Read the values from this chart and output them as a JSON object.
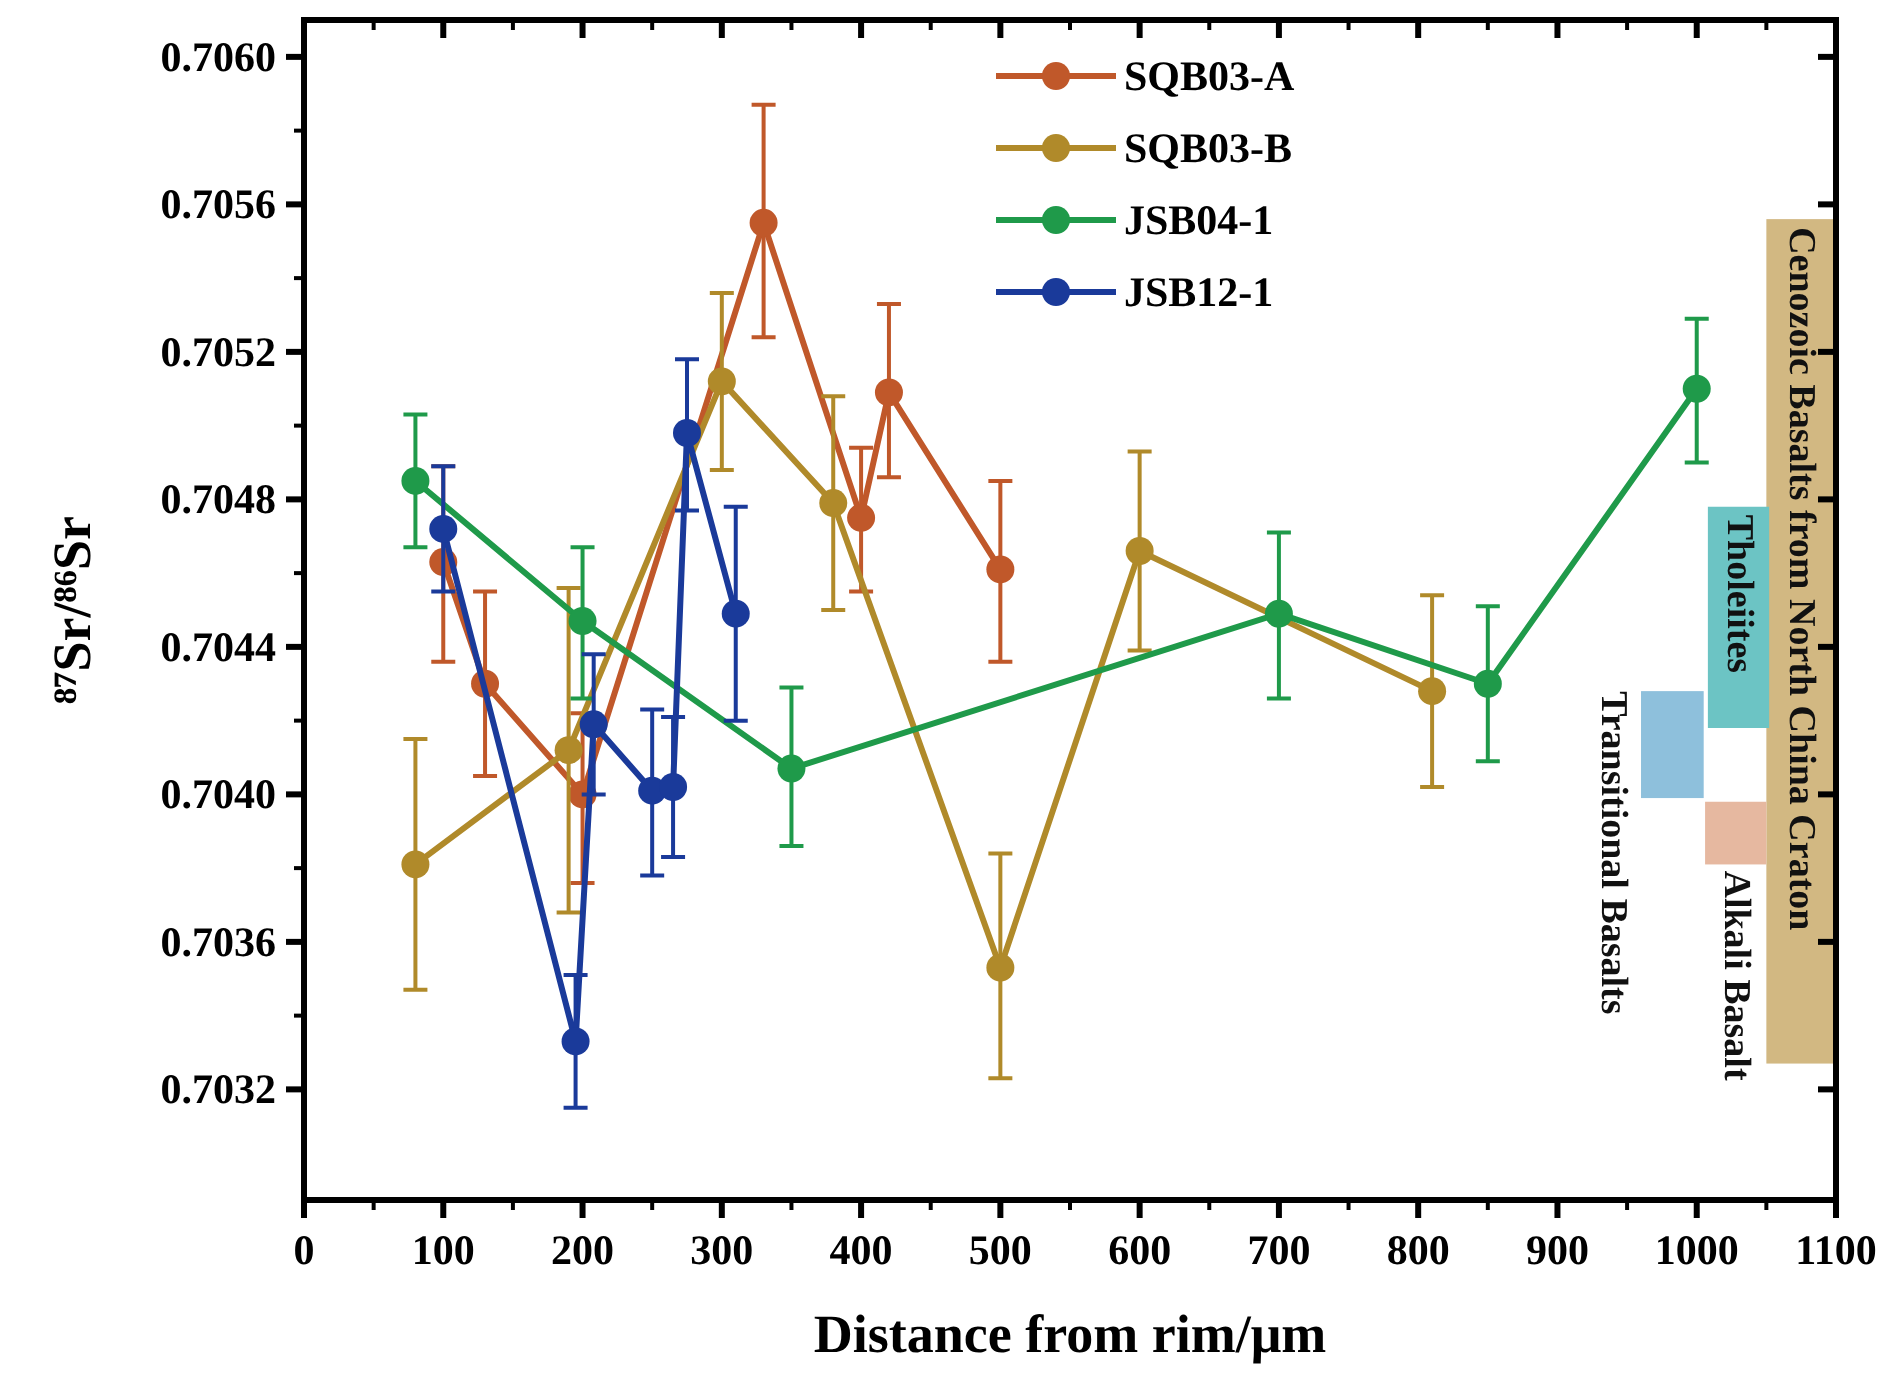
{
  "chart_data": {
    "type": "line",
    "xlabel": "Distance from rim/μm",
    "ylabel": "⁸⁷Sr/⁸⁶Sr",
    "xlim": [
      0,
      1100
    ],
    "xticks": [
      0,
      100,
      200,
      300,
      400,
      500,
      600,
      700,
      800,
      900,
      1000,
      1100
    ],
    "ylim": [
      0.7029,
      0.7061
    ],
    "yticks": [
      0.7032,
      0.7036,
      {
        "value": 0.704,
        "label": "0.7040"
      },
      0.7044,
      0.7048,
      0.7052,
      0.7056,
      {
        "value": 0.706,
        "label": "0.7060"
      }
    ],
    "grid": false,
    "legend": "top",
    "marker": "circle",
    "line_style": "solid",
    "series": [
      {
        "name": "SQB03-A",
        "color": "#c0582a",
        "x": [
          100,
          130,
          200,
          330,
          400,
          420,
          500
        ],
        "values": [
          0.70463,
          0.7043,
          0.704,
          0.70555,
          0.70475,
          0.70509,
          0.70461
        ],
        "errors": [
          [
            0.70436,
            0.70489
          ],
          [
            0.70405,
            0.70455
          ],
          [
            0.70376,
            0.70422
          ],
          [
            0.70524,
            0.70587
          ],
          [
            0.70455,
            0.70494
          ],
          [
            0.70486,
            0.70533
          ],
          [
            0.70436,
            0.70485
          ]
        ]
      },
      {
        "name": "SQB03-B",
        "color": "#b08a2a",
        "x": [
          80,
          190,
          300,
          380,
          500,
          600,
          810
        ],
        "values": [
          0.70381,
          0.70412,
          0.70512,
          0.70479,
          0.70353,
          0.70466,
          0.70428
        ],
        "errors": [
          [
            0.70347,
            0.70415
          ],
          [
            0.70368,
            0.70456
          ],
          [
            0.70488,
            0.70536
          ],
          [
            0.7045,
            0.70508
          ],
          [
            0.70323,
            0.70384
          ],
          [
            0.70439,
            0.70493
          ],
          [
            0.70402,
            0.70454
          ]
        ]
      },
      {
        "name": "JSB04-1",
        "color": "#1f9a4a",
        "x": [
          80,
          200,
          350,
          700,
          850,
          1000
        ],
        "values": [
          0.70485,
          0.70447,
          0.70407,
          0.70449,
          0.7043,
          0.7051
        ],
        "errors": [
          [
            0.70467,
            0.70503
          ],
          [
            0.70426,
            0.70467
          ],
          [
            0.70386,
            0.70429
          ],
          [
            0.70426,
            0.70471
          ],
          [
            0.70409,
            0.70451
          ],
          [
            0.7049,
            0.70529
          ]
        ]
      },
      {
        "name": "JSB12-1",
        "color": "#1a3a9a",
        "x": [
          100,
          195,
          208,
          250,
          265,
          275,
          310
        ],
        "values": [
          0.70472,
          0.70333,
          0.70419,
          0.70401,
          0.70402,
          0.70498,
          0.70449
        ],
        "errors": [
          [
            0.70455,
            0.70489
          ],
          [
            0.70315,
            0.70351
          ],
          [
            0.704,
            0.70438
          ],
          [
            0.70378,
            0.70423
          ],
          [
            0.70383,
            0.70421
          ],
          [
            0.70477,
            0.70518
          ],
          [
            0.7042,
            0.70478
          ]
        ]
      }
    ],
    "bands": [
      {
        "axis": "y",
        "from": 0.70327,
        "to": 0.70556,
        "label": "Cenozoic Basalts from North China Craton",
        "color": "#d2b882"
      },
      {
        "axis": "y",
        "from": 0.70418,
        "to": 0.70478,
        "label": "Tholeiites",
        "color": "#6cc4c4"
      },
      {
        "axis": "y",
        "from": 0.70399,
        "to": 0.70428,
        "label": "Transitional Basalts",
        "color": "#8ec0dc"
      },
      {
        "axis": "y",
        "from": 0.70381,
        "to": 0.70398,
        "label": "Alkali Basalt",
        "color": "#e6b8a0"
      }
    ]
  }
}
